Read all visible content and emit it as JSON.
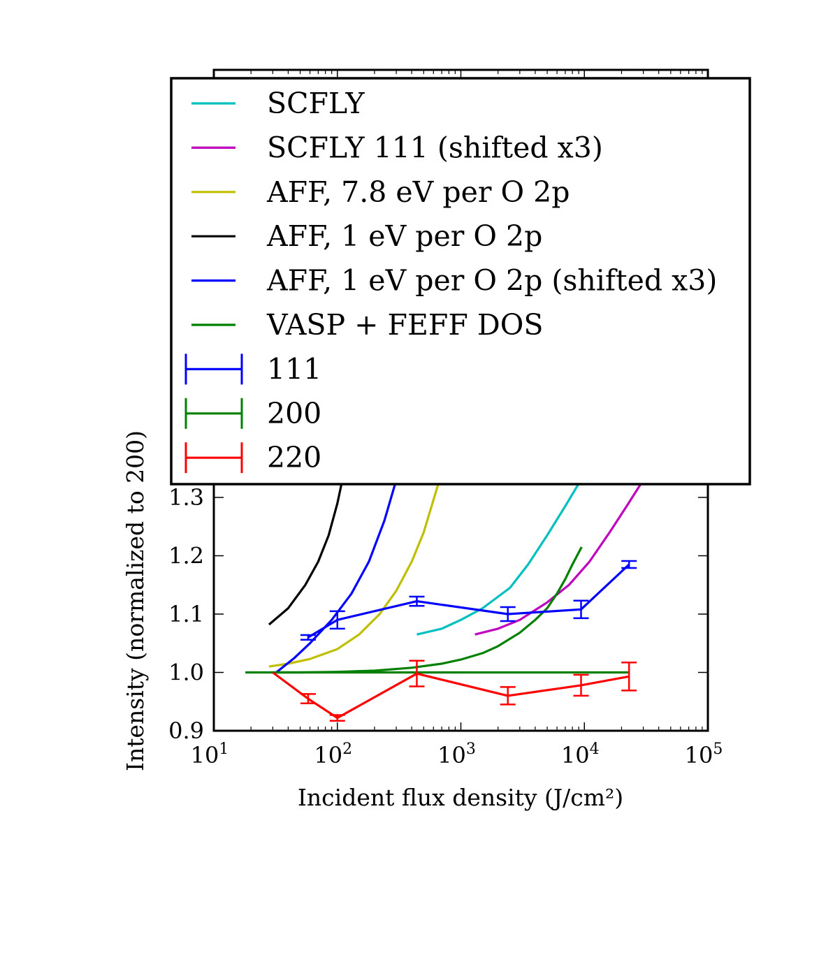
{
  "chart_data": {
    "type": "line",
    "title": "",
    "xlabel": "Incident flux density (J/cm²)",
    "ylabel": "Intensity (normalized to 200)",
    "xscale": "log",
    "xlim": [
      10,
      100000
    ],
    "ylim": [
      0.9,
      1.3
    ],
    "x_ticks": [
      {
        "value": 10,
        "base": "10",
        "exp": "1"
      },
      {
        "value": 100,
        "base": "10",
        "exp": "2"
      },
      {
        "value": 1000,
        "base": "10",
        "exp": "3"
      },
      {
        "value": 10000,
        "base": "10",
        "exp": "4"
      },
      {
        "value": 100000,
        "base": "10",
        "exp": "5"
      }
    ],
    "y_ticks": [
      "0.9",
      "1.0",
      "1.1",
      "1.2",
      "1.3"
    ],
    "grid": false,
    "legend_position": "top",
    "series": [
      {
        "name": "SCFLY",
        "color": "#00bfbf",
        "style": "line",
        "x": [
          440,
          700,
          1000,
          1500,
          2500,
          3500,
          5000,
          7000,
          10000,
          13000
        ],
        "y": [
          1.065,
          1.075,
          1.09,
          1.11,
          1.145,
          1.185,
          1.235,
          1.285,
          1.34,
          1.38
        ]
      },
      {
        "name": "SCFLY 111 (shifted x3)",
        "color": "#bf00bf",
        "style": "line",
        "x": [
          1300,
          2000,
          3000,
          5000,
          7500,
          11000,
          16000,
          22000,
          30000
        ],
        "y": [
          1.065,
          1.075,
          1.09,
          1.12,
          1.15,
          1.19,
          1.24,
          1.285,
          1.33
        ]
      },
      {
        "name": "AFF, 7.8 eV per O 2p",
        "color": "#bfbf00",
        "style": "line",
        "x": [
          28,
          40,
          60,
          100,
          150,
          220,
          300,
          400,
          500,
          650,
          800
        ],
        "y": [
          1.01,
          1.015,
          1.023,
          1.04,
          1.065,
          1.1,
          1.14,
          1.19,
          1.24,
          1.32,
          1.38
        ]
      },
      {
        "name": "AFF, 1 eV per O 2p",
        "color": "#000000",
        "style": "line",
        "x": [
          28,
          40,
          55,
          70,
          85,
          100,
          115
        ],
        "y": [
          1.082,
          1.11,
          1.15,
          1.19,
          1.235,
          1.29,
          1.35
        ]
      },
      {
        "name": "AFF, 1 eV per O 2p (shifted x3)",
        "color": "#0000ff",
        "style": "line",
        "x": [
          32,
          45,
          60,
          90,
          130,
          180,
          240,
          300,
          350
        ],
        "y": [
          1.0,
          1.025,
          1.05,
          1.09,
          1.135,
          1.19,
          1.26,
          1.33,
          1.38
        ]
      },
      {
        "name": "VASP + FEFF DOS",
        "color": "#008000",
        "style": "line",
        "x": [
          18,
          50,
          100,
          200,
          400,
          700,
          1000,
          1500,
          2000,
          3000,
          4000,
          5000,
          6000,
          7000,
          8000,
          9500
        ],
        "y": [
          1.0,
          1.0,
          1.001,
          1.003,
          1.008,
          1.015,
          1.022,
          1.033,
          1.045,
          1.068,
          1.09,
          1.11,
          1.135,
          1.16,
          1.185,
          1.215
        ]
      },
      {
        "name": "111",
        "color": "#0000ff",
        "style": "errorbar",
        "x": [
          58,
          100,
          440,
          2400,
          9400,
          23000
        ],
        "y": [
          1.06,
          1.09,
          1.122,
          1.1,
          1.108,
          1.185
        ],
        "yerr": [
          0.004,
          0.015,
          0.008,
          0.012,
          0.015,
          0.006
        ]
      },
      {
        "name": "200",
        "color": "#008000",
        "style": "errorbar",
        "x": [
          30,
          23000
        ],
        "y": [
          1.0,
          1.0
        ],
        "yerr": [
          0,
          0
        ]
      },
      {
        "name": "220",
        "color": "#ff0000",
        "style": "errorbar",
        "x": [
          30,
          58,
          100,
          440,
          2400,
          9400,
          23000
        ],
        "y": [
          1.0,
          0.955,
          0.922,
          0.998,
          0.96,
          0.978,
          0.993
        ],
        "yerr": [
          0,
          0.008,
          0.005,
          0.022,
          0.015,
          0.018,
          0.024
        ]
      }
    ]
  }
}
